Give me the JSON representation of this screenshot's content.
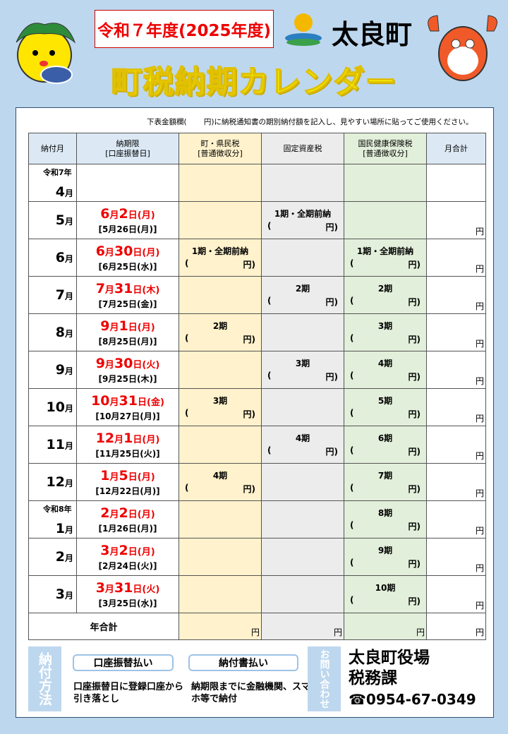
{
  "header": {
    "era_year": "令和７年度(2025年度)",
    "town": "太良町",
    "title": "町税納期カレンダー"
  },
  "note": "下表金額欄(　　 円)に納税通知書の期別納付額を記入し、見やすい場所に貼ってご使用ください。",
  "columns": [
    "納付月",
    "納期限\n[口座振替日]",
    "町・県民税\n[普通徴収分]",
    "固定資産税",
    "国民健康保険税\n[普通徴収分]",
    "月合計"
  ],
  "yen": "円",
  "rows": [
    {
      "era": "令和7年",
      "month": "4",
      "unit": "月",
      "due_m": "",
      "due_d": "",
      "due_w": "",
      "transfer": "",
      "town": "",
      "fixed": "",
      "health": "",
      "total": false
    },
    {
      "month": "5",
      "unit": "月",
      "due_m": "6",
      "due_d": "2",
      "due_w": "(月)",
      "transfer": "[5月26日(月)]",
      "town": "",
      "fixed": "1期・全期前納",
      "health": "",
      "total": true
    },
    {
      "month": "6",
      "unit": "月",
      "due_m": "6",
      "due_d": "30",
      "due_w": "(月)",
      "transfer": "[6月25日(水)]",
      "town": "1期・全期前納",
      "fixed": "",
      "health": "1期・全期前納",
      "total": true
    },
    {
      "month": "7",
      "unit": "月",
      "due_m": "7",
      "due_d": "31",
      "due_w": "(木)",
      "transfer": "[7月25日(金)]",
      "town": "",
      "fixed": "2期",
      "health": "2期",
      "total": true
    },
    {
      "month": "8",
      "unit": "月",
      "due_m": "9",
      "due_d": "1",
      "due_w": "(月)",
      "transfer": "[8月25日(月)]",
      "town": "2期",
      "fixed": "",
      "health": "3期",
      "total": true
    },
    {
      "month": "9",
      "unit": "月",
      "due_m": "9",
      "due_d": "30",
      "due_w": "(火)",
      "transfer": "[9月25日(木)]",
      "town": "",
      "fixed": "3期",
      "health": "4期",
      "total": true
    },
    {
      "month": "10",
      "unit": "月",
      "due_m": "10",
      "due_d": "31",
      "due_w": "(金)",
      "transfer": "[10月27日(月)]",
      "town": "3期",
      "fixed": "",
      "health": "5期",
      "total": true
    },
    {
      "month": "11",
      "unit": "月",
      "due_m": "12",
      "due_d": "1",
      "due_w": "(月)",
      "transfer": "[11月25日(火)]",
      "town": "",
      "fixed": "4期",
      "health": "6期",
      "total": true
    },
    {
      "month": "12",
      "unit": "月",
      "due_m": "1",
      "due_d": "5",
      "due_w": "(月)",
      "transfer": "[12月22日(月)]",
      "town": "4期",
      "fixed": "",
      "health": "7期",
      "total": true
    },
    {
      "era": "令和8年",
      "month": "1",
      "unit": "月",
      "due_m": "2",
      "due_d": "2",
      "due_w": "(月)",
      "transfer": "[1月26日(月)]",
      "town": "",
      "fixed": "",
      "health": "8期",
      "total": true
    },
    {
      "month": "2",
      "unit": "月",
      "due_m": "3",
      "due_d": "2",
      "due_w": "(月)",
      "transfer": "[2月24日(火)]",
      "town": "",
      "fixed": "",
      "health": "9期",
      "total": true
    },
    {
      "month": "3",
      "unit": "月",
      "due_m": "3",
      "due_d": "31",
      "due_w": "(火)",
      "transfer": "[3月25日(水)]",
      "town": "",
      "fixed": "",
      "health": "10期",
      "total": true
    }
  ],
  "labels": {
    "month_unit": "月",
    "day_unit": "日",
    "paren_open": "(",
    "paren_close": "円)"
  },
  "annual": "年合計",
  "footer": {
    "method_label": "納付方法",
    "method1": "口座振替払い",
    "method1_desc": "口座振替日に登録口座から引き落とし",
    "method2": "納付書払い",
    "method2_desc": "納期限までに金融機関、スマホ等で納付",
    "contact_label": "お問い合わせ",
    "office": "太良町役場",
    "dept": "税務課",
    "phone": "☎0954-67-0349"
  },
  "colors": {
    "background": "#bdd7ee",
    "due_red": "#e00000",
    "town_col": "#fff2cc",
    "fixed_col": "#ececec",
    "health_col": "#e2efda",
    "title_yellow": "#ffff00"
  }
}
